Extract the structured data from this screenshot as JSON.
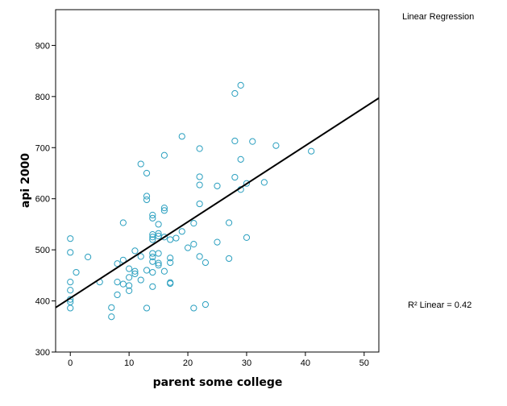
{
  "chart_data": {
    "type": "scatter",
    "xlabel": "parent some college",
    "ylabel": "api 2000",
    "xlim": [
      -2.5,
      52.5
    ],
    "ylim": [
      300,
      970
    ],
    "xticks": [
      0,
      10,
      20,
      30,
      40,
      50
    ],
    "yticks": [
      300,
      400,
      500,
      600,
      700,
      800,
      900
    ],
    "grid": false,
    "point_color": "#2a9fbf",
    "fit_line_color": "#000000",
    "fit_label": "Linear Regression",
    "r2_label": "R² Linear = 0.42",
    "fit_line": {
      "x": [
        -2.5,
        52.5
      ],
      "y": [
        387,
        797
      ]
    },
    "series": [
      {
        "points": [
          [
            0,
            522
          ],
          [
            0,
            495
          ],
          [
            0,
            437
          ],
          [
            0,
            421
          ],
          [
            0,
            403
          ],
          [
            0,
            398
          ],
          [
            0,
            386
          ],
          [
            1,
            456
          ],
          [
            3,
            486
          ],
          [
            5,
            437
          ],
          [
            7,
            387
          ],
          [
            7,
            369
          ],
          [
            8,
            473
          ],
          [
            8,
            437
          ],
          [
            8,
            412
          ],
          [
            9,
            553
          ],
          [
            9,
            433
          ],
          [
            9,
            480
          ],
          [
            10,
            463
          ],
          [
            10,
            446
          ],
          [
            10,
            430
          ],
          [
            10,
            420
          ],
          [
            11,
            498
          ],
          [
            11,
            458
          ],
          [
            11,
            453
          ],
          [
            12,
            668
          ],
          [
            12,
            487
          ],
          [
            12,
            441
          ],
          [
            13,
            650
          ],
          [
            13,
            605
          ],
          [
            13,
            598
          ],
          [
            13,
            386
          ],
          [
            13,
            460
          ],
          [
            14,
            568
          ],
          [
            14,
            562
          ],
          [
            14,
            530
          ],
          [
            14,
            525
          ],
          [
            14,
            520
          ],
          [
            14,
            493
          ],
          [
            14,
            486
          ],
          [
            14,
            477
          ],
          [
            14,
            456
          ],
          [
            14,
            428
          ],
          [
            15,
            550
          ],
          [
            15,
            532
          ],
          [
            15,
            527
          ],
          [
            15,
            493
          ],
          [
            15,
            474
          ],
          [
            15,
            470
          ],
          [
            16,
            685
          ],
          [
            16,
            582
          ],
          [
            16,
            577
          ],
          [
            16,
            525
          ],
          [
            16,
            458
          ],
          [
            17,
            520
          ],
          [
            17,
            484
          ],
          [
            17,
            475
          ],
          [
            17,
            436
          ],
          [
            17,
            434
          ],
          [
            18,
            523
          ],
          [
            19,
            722
          ],
          [
            19,
            536
          ],
          [
            20,
            504
          ],
          [
            21,
            552
          ],
          [
            21,
            511
          ],
          [
            21,
            386
          ],
          [
            22,
            698
          ],
          [
            22,
            643
          ],
          [
            22,
            627
          ],
          [
            22,
            590
          ],
          [
            22,
            487
          ],
          [
            23,
            393
          ],
          [
            23,
            475
          ],
          [
            25,
            625
          ],
          [
            25,
            515
          ],
          [
            27,
            553
          ],
          [
            27,
            483
          ],
          [
            28,
            806
          ],
          [
            28,
            713
          ],
          [
            28,
            642
          ],
          [
            29,
            822
          ],
          [
            29,
            677
          ],
          [
            29,
            618
          ],
          [
            30,
            630
          ],
          [
            30,
            524
          ],
          [
            31,
            712
          ],
          [
            33,
            632
          ],
          [
            35,
            704
          ],
          [
            41,
            693
          ]
        ]
      }
    ]
  }
}
